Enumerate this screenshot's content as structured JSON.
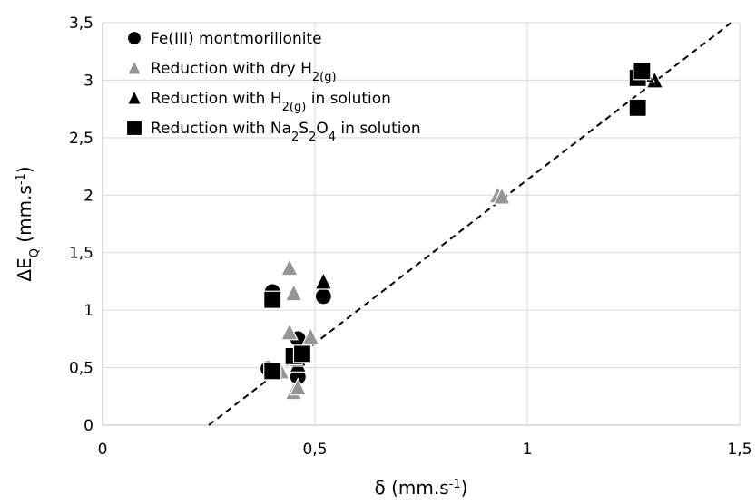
{
  "chart_data": {
    "type": "scatter",
    "xlabel": [
      "δ (mm.s",
      "-1",
      ")"
    ],
    "ylabel": [
      "ΔE",
      "Q",
      " (mm.s",
      "-1",
      ")"
    ],
    "xlim": [
      0,
      1.5
    ],
    "ylim": [
      0,
      3.5
    ],
    "xticks": [
      0,
      {
        "value": 0.5,
        "label": "0,5"
      },
      1,
      {
        "value": 1.5,
        "label": "1,5"
      }
    ],
    "yticks": [
      0,
      {
        "value": 0.5,
        "label": "0,5"
      },
      1,
      {
        "value": 1.5,
        "label": "1,5"
      },
      2,
      {
        "value": 2.5,
        "label": "2,5"
      },
      3,
      {
        "value": 3.5,
        "label": "3,5"
      }
    ],
    "grid": true,
    "legend": "upper left",
    "series": [
      {
        "name": [
          "Fe(III) montmorillonite"
        ],
        "color": "#000000",
        "marker": "circle",
        "x": [
          0.39,
          0.4,
          0.46,
          0.46,
          0.46,
          0.52
        ],
        "values": [
          0.49,
          1.16,
          0.75,
          0.55,
          0.42,
          1.12
        ]
      },
      {
        "name": [
          "Reduction with dry H",
          "2(g)"
        ],
        "color": "#959595",
        "marker": "triangle",
        "x": [
          0.44,
          0.45,
          0.44,
          0.49,
          0.45,
          0.46,
          0.93,
          0.94,
          0.42
        ],
        "values": [
          1.37,
          1.15,
          0.81,
          0.77,
          0.29,
          0.33,
          2.0,
          1.99,
          0.47
        ]
      },
      {
        "name": [
          "Reduction with H",
          "2(g)",
          " in solution"
        ],
        "color": "#000000",
        "marker": "triangle",
        "x": [
          0.52,
          0.46,
          0.46,
          1.3,
          1.28
        ],
        "values": [
          1.25,
          0.53,
          0.58,
          3.0,
          3.05
        ]
      },
      {
        "name": [
          "Reduction with Na",
          "2",
          "S",
          "2",
          "O",
          "4",
          " in solution"
        ],
        "color": "#000000",
        "marker": "square",
        "x": [
          0.4,
          0.4,
          0.45,
          0.47,
          1.26,
          1.27,
          1.26
        ],
        "values": [
          1.09,
          0.47,
          0.6,
          0.62,
          3.02,
          3.08,
          2.76
        ]
      }
    ],
    "trendline": {
      "x": [
        0.25,
        1.48
      ],
      "values": [
        0,
        3.5
      ]
    }
  }
}
